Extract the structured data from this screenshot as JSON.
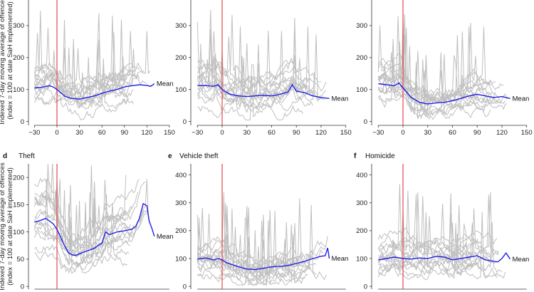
{
  "figure": {
    "ylabel_line1": "Indexed 7-day moving average of offences",
    "ylabel_line2": "(index = 100 at date SaH implemented)"
  },
  "colors": {
    "mean": "#1f1fe6",
    "city": "#bfbfbf",
    "vline": "#e8474a",
    "axis": "#333333"
  },
  "chart_data": [
    {
      "type": "line",
      "letter": "",
      "title": "",
      "xlim": [
        -38,
        152
      ],
      "ylim": [
        -12,
        380
      ],
      "xticks": [
        -30,
        0,
        30,
        60,
        90,
        120,
        150
      ],
      "yticks": [
        0,
        100,
        200,
        300
      ],
      "series": [
        {
          "name": "Mean",
          "x": [
            -30,
            -20,
            -10,
            -5,
            0,
            5,
            10,
            15,
            20,
            30,
            40,
            50,
            60,
            70,
            80,
            90,
            100,
            110,
            120,
            125,
            130
          ],
          "y": [
            105,
            107,
            112,
            108,
            100,
            90,
            80,
            75,
            72,
            70,
            75,
            80,
            88,
            95,
            100,
            108,
            112,
            115,
            113,
            110,
            118
          ]
        }
      ]
    },
    {
      "type": "line",
      "letter": "",
      "title": "",
      "xlim": [
        -38,
        152
      ],
      "ylim": [
        -12,
        380
      ],
      "xticks": [
        -30,
        0,
        30,
        60,
        90,
        120,
        150
      ],
      "yticks": [
        0,
        100,
        200,
        300
      ],
      "series": [
        {
          "name": "Mean",
          "x": [
            -30,
            -20,
            -10,
            -5,
            0,
            5,
            10,
            20,
            30,
            40,
            50,
            60,
            70,
            80,
            85,
            90,
            100,
            110,
            120,
            130
          ],
          "y": [
            112,
            113,
            110,
            115,
            100,
            92,
            85,
            80,
            78,
            80,
            82,
            80,
            85,
            92,
            115,
            95,
            90,
            80,
            75,
            72
          ]
        }
      ]
    },
    {
      "type": "line",
      "letter": "",
      "title": "",
      "xlim": [
        -38,
        152
      ],
      "ylim": [
        -12,
        380
      ],
      "xticks": [
        -30,
        0,
        30,
        60,
        90,
        120,
        150
      ],
      "yticks": [
        0,
        100,
        200,
        300
      ],
      "series": [
        {
          "name": "Mean",
          "x": [
            -30,
            -20,
            -10,
            -5,
            0,
            5,
            10,
            20,
            30,
            40,
            50,
            60,
            70,
            80,
            90,
            100,
            110,
            120,
            130
          ],
          "y": [
            118,
            115,
            112,
            120,
            105,
            90,
            75,
            60,
            55,
            58,
            60,
            65,
            72,
            80,
            85,
            80,
            75,
            78,
            72
          ]
        }
      ]
    },
    {
      "type": "line",
      "letter": "d",
      "title": "Theft",
      "xlim": [
        -38,
        152
      ],
      "ylim": [
        -5,
        225
      ],
      "xticks": [
        -30,
        0,
        30,
        60,
        90,
        120,
        150
      ],
      "yticks": [
        0,
        50,
        100,
        150,
        200
      ],
      "series": [
        {
          "name": "Mean",
          "x": [
            -30,
            -20,
            -15,
            -10,
            -5,
            0,
            5,
            10,
            15,
            20,
            25,
            30,
            40,
            50,
            60,
            65,
            70,
            80,
            90,
            100,
            105,
            110,
            115,
            120,
            123,
            127,
            130
          ],
          "y": [
            118,
            122,
            125,
            120,
            115,
            105,
            90,
            75,
            62,
            58,
            57,
            60,
            65,
            70,
            80,
            100,
            95,
            100,
            102,
            105,
            110,
            125,
            152,
            148,
            120,
            105,
            92
          ]
        }
      ]
    },
    {
      "type": "line",
      "letter": "e",
      "title": "Vehicle theft",
      "xlim": [
        -38,
        152
      ],
      "ylim": [
        -10,
        440
      ],
      "xticks": [
        -30,
        0,
        30,
        60,
        90,
        120,
        150
      ],
      "yticks": [
        0,
        100,
        200,
        300,
        400
      ],
      "series": [
        {
          "name": "Mean",
          "x": [
            -30,
            -20,
            -10,
            -5,
            0,
            5,
            10,
            20,
            30,
            40,
            50,
            60,
            70,
            80,
            90,
            100,
            110,
            120,
            125,
            128,
            130
          ],
          "y": [
            98,
            102,
            95,
            100,
            95,
            85,
            80,
            70,
            62,
            60,
            65,
            70,
            72,
            75,
            82,
            90,
            100,
            108,
            110,
            138,
            100
          ]
        }
      ]
    },
    {
      "type": "line",
      "letter": "f",
      "title": "Homicide",
      "xlim": [
        -38,
        152
      ],
      "ylim": [
        -10,
        440
      ],
      "xticks": [
        -30,
        0,
        30,
        60,
        90,
        120,
        150
      ],
      "yticks": [
        0,
        100,
        200,
        300,
        400
      ],
      "series": [
        {
          "name": "Mean",
          "x": [
            -30,
            -20,
            -10,
            0,
            10,
            20,
            30,
            40,
            50,
            60,
            70,
            80,
            90,
            100,
            110,
            115,
            120,
            125,
            130
          ],
          "y": [
            95,
            100,
            105,
            100,
            98,
            102,
            100,
            108,
            105,
            95,
            100,
            105,
            110,
            95,
            90,
            88,
            100,
            120,
            98
          ]
        }
      ]
    }
  ]
}
